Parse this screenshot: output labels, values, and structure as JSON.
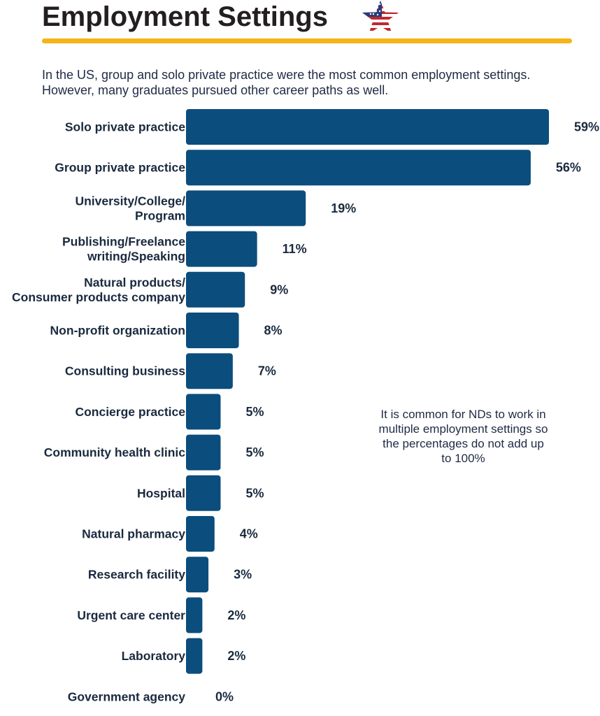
{
  "header": {
    "title": "Employment Settings",
    "subtitle": "In the US, group and solo private practice were the most common employment settings. However, many graduates pursued other career paths as well."
  },
  "note": "It is common for NDs to work in multiple employment settings so the percentages do not add up to 100%",
  "colors": {
    "bar": "#0b4d7d",
    "rule": "#f5b417",
    "text": "#1a2a3f"
  },
  "icons": {
    "flag": "us-flag-star-icon"
  },
  "chart_data": {
    "type": "bar",
    "orientation": "horizontal",
    "categories": [
      "Solo private practice",
      "Group private practice",
      "University/College/\nProgram",
      "Publishing/Freelance\nwriting/Speaking",
      "Natural products/\nConsumer products company",
      "Non-profit organization",
      "Consulting business",
      "Concierge practice",
      "Community health clinic",
      "Hospital",
      "Natural pharmacy",
      "Research facility",
      "Urgent care center",
      "Laboratory",
      "Government agency"
    ],
    "values": [
      59,
      56,
      19,
      11,
      9,
      8,
      7,
      5,
      5,
      5,
      4,
      3,
      2,
      2,
      0
    ],
    "value_labels": [
      "59%",
      "56%",
      "19%",
      "11%",
      "9%",
      "8%",
      "7%",
      "5%",
      "5%",
      "5%",
      "4%",
      "3%",
      "2%",
      "2%",
      "0%"
    ],
    "xlim": [
      0,
      59
    ],
    "unit": "%",
    "grid": false
  }
}
